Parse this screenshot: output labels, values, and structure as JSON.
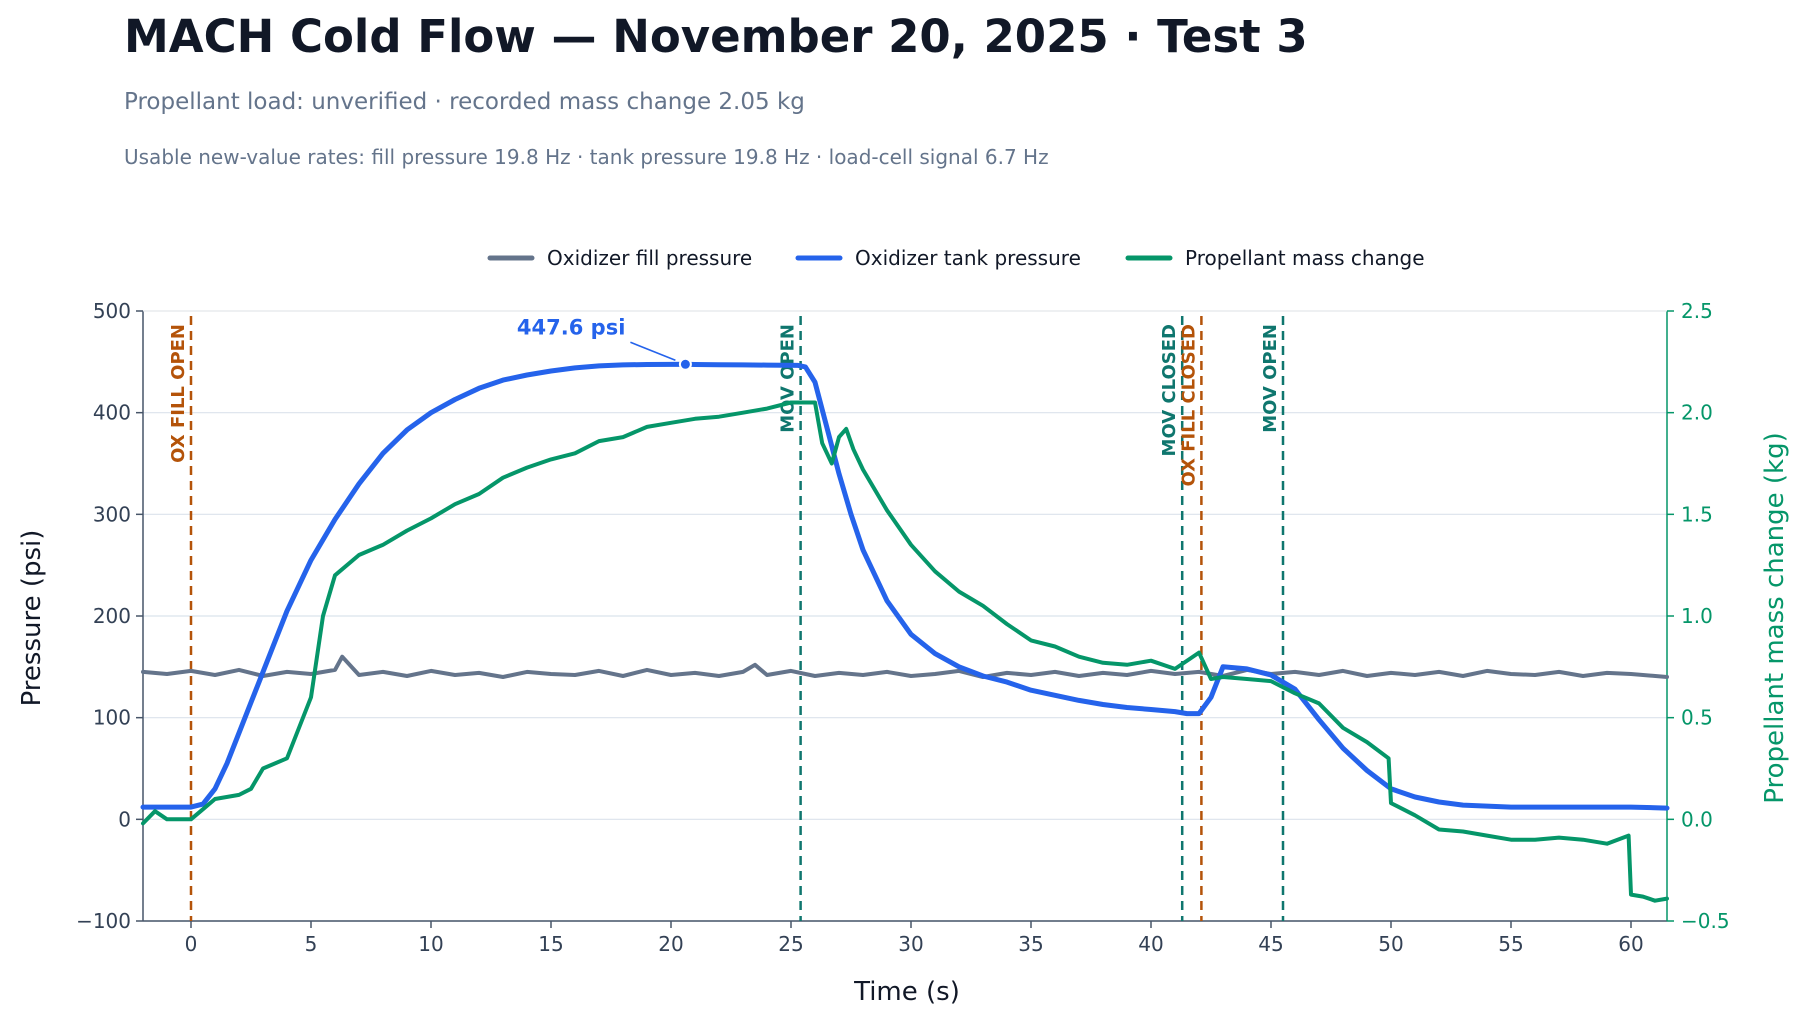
{
  "page": {
    "title": "MACH Cold Flow — November 20, 2025 · Test 3",
    "subtitle": "Propellant load: unverified · recorded mass change 2.05 kg",
    "rates": "Usable new-value rates: fill pressure 19.8 Hz · tank pressure 19.8 Hz · load-cell signal 6.7 Hz"
  },
  "colors": {
    "fill": "#64748b",
    "tank": "#2563eb",
    "mass": "#059669",
    "ox_event": "#b45309",
    "mov_event": "#0f766e",
    "grid": "#dbe3ec",
    "axis": "#475569",
    "tick_text": "#334155"
  },
  "chart_data": {
    "type": "line",
    "xlabel": "Time (s)",
    "ylabel": "Pressure (psi)",
    "y2label": "Propellant mass change (kg)",
    "xlim": [
      -2,
      61.5
    ],
    "ylim": [
      -100,
      500
    ],
    "y2lim": [
      -0.5,
      2.5
    ],
    "xticks": [
      0,
      5,
      10,
      15,
      20,
      25,
      30,
      35,
      40,
      45,
      50,
      55,
      60
    ],
    "yticks": [
      -100,
      0,
      100,
      200,
      300,
      400,
      500
    ],
    "y2ticks": [
      -0.5,
      0.0,
      0.5,
      1.0,
      1.5,
      2.0,
      2.5
    ],
    "ytick_labels": [
      "−100",
      "0",
      "100",
      "200",
      "300",
      "400",
      "500"
    ],
    "y2tick_labels": [
      "−0.5",
      "0.0",
      "0.5",
      "1.0",
      "1.5",
      "2.0",
      "2.5"
    ],
    "legend_position": "top-center",
    "grid": true,
    "series": [
      {
        "name": "Oxidizer fill pressure",
        "axis": "left",
        "x": [
          -2,
          -1,
          0,
          1,
          2,
          3,
          4,
          5,
          6,
          6.3,
          7,
          8,
          9,
          10,
          11,
          12,
          13,
          14,
          15,
          16,
          17,
          18,
          19,
          20,
          21,
          22,
          23,
          23.5,
          24,
          25,
          26,
          27,
          28,
          29,
          30,
          31,
          32,
          33,
          34,
          35,
          36,
          37,
          38,
          39,
          40,
          41,
          42,
          43,
          44,
          45,
          46,
          47,
          48,
          49,
          50,
          51,
          52,
          53,
          54,
          55,
          56,
          57,
          58,
          59,
          60,
          61.5
        ],
        "y": [
          145,
          143,
          146,
          142,
          147,
          141,
          145,
          143,
          147,
          160,
          142,
          145,
          141,
          146,
          142,
          144,
          140,
          145,
          143,
          142,
          146,
          141,
          147,
          142,
          144,
          141,
          145,
          152,
          142,
          146,
          141,
          144,
          142,
          145,
          141,
          143,
          146,
          140,
          144,
          142,
          145,
          141,
          144,
          142,
          146,
          143,
          145,
          141,
          147,
          143,
          145,
          142,
          146,
          141,
          144,
          142,
          145,
          141,
          146,
          143,
          142,
          145,
          141,
          144,
          143,
          140
        ]
      },
      {
        "name": "Oxidizer tank pressure",
        "axis": "left",
        "x": [
          -2,
          -1,
          0,
          0.5,
          1,
          1.5,
          2,
          3,
          4,
          5,
          6,
          7,
          8,
          9,
          10,
          11,
          12,
          13,
          14,
          15,
          16,
          17,
          18,
          19,
          20,
          20.6,
          21,
          22,
          23,
          24,
          25.3,
          25.6,
          26,
          26.5,
          27,
          27.5,
          28,
          29,
          30,
          31,
          32,
          33,
          34,
          35,
          36,
          37,
          38,
          39,
          40,
          41,
          41.5,
          42,
          42.5,
          43,
          44,
          45,
          46,
          47,
          48,
          49,
          50,
          51,
          52,
          53,
          54,
          55,
          56,
          57,
          58,
          59,
          60,
          61.5
        ],
        "y": [
          12,
          12,
          12,
          15,
          30,
          55,
          85,
          145,
          205,
          255,
          295,
          330,
          360,
          383,
          400,
          413,
          424,
          432,
          437,
          441,
          444,
          446,
          447,
          447.4,
          447.5,
          447.6,
          447.4,
          447.2,
          447,
          446.8,
          446.5,
          445,
          430,
          385,
          340,
          300,
          265,
          215,
          182,
          163,
          150,
          141,
          135,
          127,
          122,
          117,
          113,
          110,
          108,
          106,
          104,
          104,
          120,
          150,
          148,
          142,
          128,
          98,
          70,
          48,
          30,
          22,
          17,
          14,
          13,
          12,
          12,
          12,
          12,
          12,
          12,
          11
        ]
      },
      {
        "name": "Propellant mass change",
        "axis": "right",
        "x": [
          -2,
          -1.5,
          -1,
          0,
          0.5,
          1,
          2,
          2.5,
          3,
          4,
          4.5,
          5,
          5.5,
          6,
          7,
          8,
          9,
          10,
          11,
          12,
          13,
          14,
          15,
          16,
          17,
          18,
          19,
          20,
          21,
          22,
          23,
          24,
          25,
          25.5,
          26,
          26.3,
          26.7,
          27,
          27.3,
          27.6,
          28,
          29,
          30,
          31,
          32,
          33,
          34,
          35,
          36,
          37,
          38,
          39,
          40,
          41,
          42,
          42.5,
          43,
          44,
          45,
          46,
          47,
          48,
          49,
          49.9,
          50,
          51,
          52,
          53,
          54,
          55,
          56,
          57,
          58,
          59,
          59.9,
          60,
          60.5,
          61,
          61.5
        ],
        "y": [
          -0.02,
          0.04,
          0.0,
          0.0,
          0.05,
          0.1,
          0.12,
          0.15,
          0.25,
          0.3,
          0.45,
          0.6,
          1.0,
          1.2,
          1.3,
          1.35,
          1.42,
          1.48,
          1.55,
          1.6,
          1.68,
          1.73,
          1.77,
          1.8,
          1.86,
          1.88,
          1.93,
          1.95,
          1.97,
          1.98,
          2.0,
          2.02,
          2.05,
          2.05,
          2.05,
          1.85,
          1.75,
          1.88,
          1.92,
          1.82,
          1.72,
          1.52,
          1.35,
          1.22,
          1.12,
          1.05,
          0.96,
          0.88,
          0.85,
          0.8,
          0.77,
          0.76,
          0.78,
          0.74,
          0.82,
          0.69,
          0.7,
          0.69,
          0.68,
          0.62,
          0.57,
          0.45,
          0.38,
          0.3,
          0.08,
          0.02,
          -0.05,
          -0.06,
          -0.08,
          -0.1,
          -0.1,
          -0.09,
          -0.1,
          -0.12,
          -0.08,
          -0.37,
          -0.38,
          -0.4,
          -0.39
        ]
      }
    ],
    "events": [
      {
        "label": "OX FILL OPEN",
        "x": 0,
        "kind": "ox"
      },
      {
        "label": "MOV OPEN",
        "x": 25.4,
        "kind": "mov"
      },
      {
        "label": "MOV CLOSED",
        "x": 41.3,
        "kind": "mov"
      },
      {
        "label": "OX FILL CLOSED",
        "x": 42.1,
        "kind": "ox"
      },
      {
        "label": "MOV OPEN",
        "x": 45.5,
        "kind": "mov"
      }
    ],
    "annotations": [
      {
        "text": "447.6 psi",
        "x": 20.6,
        "y": 447.6
      }
    ]
  }
}
